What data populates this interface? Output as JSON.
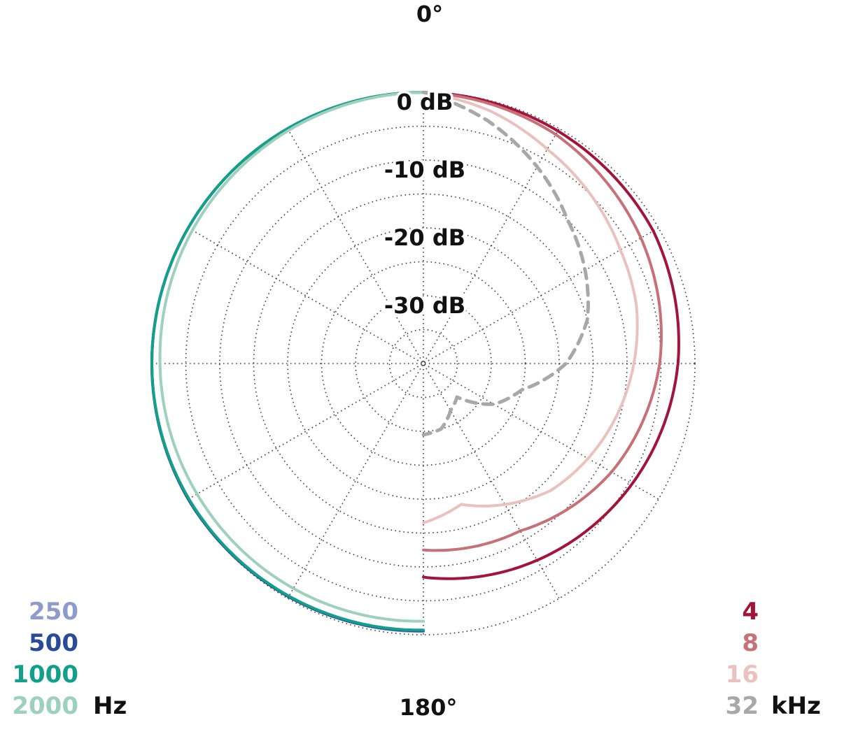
{
  "chart_data": {
    "type": "polar",
    "angle_labels": {
      "top": "0°",
      "bottom": "180°"
    },
    "radial_ticks": [
      {
        "value": 0,
        "label": "0 dB"
      },
      {
        "value": -10,
        "label": "-10 dB"
      },
      {
        "value": -20,
        "label": "-20 dB"
      },
      {
        "value": -30,
        "label": "-30 dB"
      }
    ],
    "r_range": [
      -40,
      0
    ],
    "angle_range_deg": [
      0,
      180
    ],
    "grid": true,
    "left_legend": {
      "unit": "Hz",
      "entries": [
        {
          "label": "250",
          "color": "#8e9bcc"
        },
        {
          "label": "500",
          "color": "#2a4a9a"
        },
        {
          "label": "1000",
          "color": "#12a08a"
        },
        {
          "label": "2000",
          "color": "#9dd0bd"
        }
      ]
    },
    "right_legend": {
      "unit": "kHz",
      "entries": [
        {
          "label": "4",
          "color": "#a3143a"
        },
        {
          "label": "8",
          "color": "#c87078"
        },
        {
          "label": "16",
          "color": "#e9c2c0"
        },
        {
          "label": "32",
          "color": "#a8a8a8"
        }
      ]
    },
    "series": [
      {
        "name": "250",
        "side": "left",
        "color": "#8e9bcc",
        "dashed": false,
        "angles": [
          0,
          30,
          60,
          90,
          120,
          150,
          180
        ],
        "values": [
          0,
          0,
          0,
          0,
          0,
          -0.3,
          -0.5
        ]
      },
      {
        "name": "500",
        "side": "left",
        "color": "#2a4a9a",
        "dashed": false,
        "angles": [
          0,
          30,
          60,
          90,
          120,
          150,
          180
        ],
        "values": [
          0,
          0,
          0,
          0,
          0,
          -0.3,
          -0.6
        ]
      },
      {
        "name": "1000",
        "side": "left",
        "color": "#12a08a",
        "dashed": false,
        "angles": [
          0,
          30,
          60,
          90,
          120,
          150,
          180
        ],
        "values": [
          0,
          0,
          0,
          0,
          -0.1,
          -0.4,
          -0.7
        ]
      },
      {
        "name": "2000",
        "side": "left",
        "color": "#9dd0bd",
        "dashed": false,
        "angles": [
          0,
          30,
          60,
          90,
          120,
          150,
          180
        ],
        "values": [
          0,
          -0.3,
          -0.7,
          -1.2,
          -1.5,
          -1.7,
          -2
        ]
      },
      {
        "name": "4",
        "side": "right",
        "color": "#a3143a",
        "dashed": false,
        "angles": [
          0,
          30,
          60,
          90,
          120,
          150,
          180
        ],
        "values": [
          0,
          -0.4,
          -0.9,
          -2.5,
          -4.5,
          -6.5,
          -8.5
        ]
      },
      {
        "name": "8",
        "side": "right",
        "color": "#c87078",
        "dashed": false,
        "angles": [
          0,
          30,
          60,
          90,
          120,
          150,
          180
        ],
        "values": [
          0,
          -1,
          -3,
          -5.2,
          -8,
          -11.5,
          -12.5
        ]
      },
      {
        "name": "16",
        "side": "right",
        "color": "#e9c2c0",
        "dashed": false,
        "angles": [
          0,
          15,
          30,
          45,
          60,
          75,
          90,
          105,
          120,
          135,
          150,
          165,
          180
        ],
        "values": [
          0,
          -1.5,
          -3.5,
          -5,
          -6.5,
          -7.5,
          -9,
          -10.5,
          -12,
          -13.5,
          -16,
          -18.5,
          -16.5
        ]
      },
      {
        "name": "32",
        "side": "right",
        "color": "#a8a8a8",
        "dashed": true,
        "angles": [
          0,
          15,
          30,
          45,
          60,
          75,
          90,
          105,
          120,
          135,
          150,
          165,
          180
        ],
        "values": [
          0,
          -3,
          -6.5,
          -10,
          -12.5,
          -15,
          -19,
          -25,
          -28,
          -33,
          -32,
          -30,
          -29.5
        ]
      }
    ]
  }
}
